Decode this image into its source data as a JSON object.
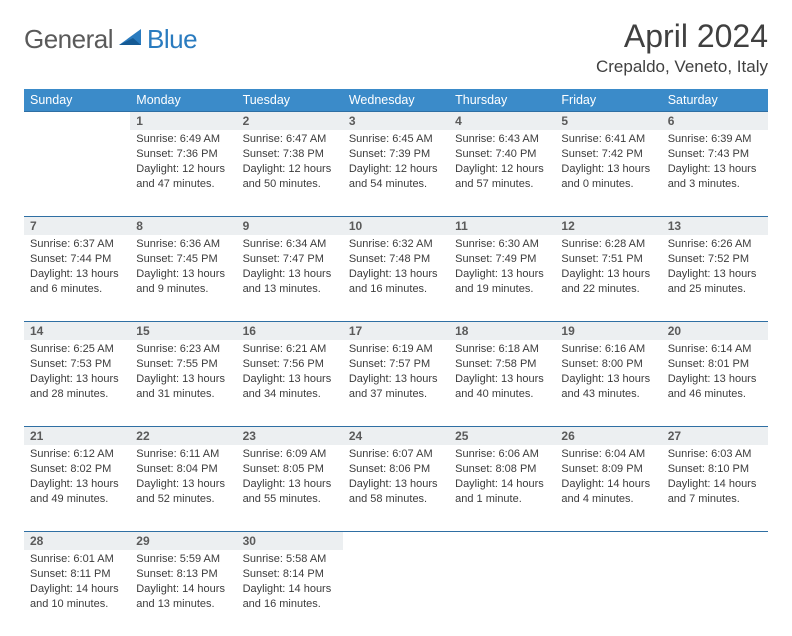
{
  "brand": {
    "part1": "General",
    "part2": "Blue"
  },
  "title": "April 2024",
  "subtitle": "Crepaldo, Veneto, Italy",
  "colors": {
    "header_bg": "#3b8bc9",
    "header_text": "#ffffff",
    "rule": "#2f6fa3",
    "daynum_bg": "#eceff1",
    "daynum_text": "#5a5a5a",
    "body_text": "#3c3c3c",
    "logo_gray": "#5a5a5a",
    "logo_blue": "#2a7bbf"
  },
  "weekdays": [
    "Sunday",
    "Monday",
    "Tuesday",
    "Wednesday",
    "Thursday",
    "Friday",
    "Saturday"
  ],
  "weeks": [
    [
      null,
      {
        "n": "1",
        "sr": "6:49 AM",
        "ss": "7:36 PM",
        "dl": "12 hours and 47 minutes."
      },
      {
        "n": "2",
        "sr": "6:47 AM",
        "ss": "7:38 PM",
        "dl": "12 hours and 50 minutes."
      },
      {
        "n": "3",
        "sr": "6:45 AM",
        "ss": "7:39 PM",
        "dl": "12 hours and 54 minutes."
      },
      {
        "n": "4",
        "sr": "6:43 AM",
        "ss": "7:40 PM",
        "dl": "12 hours and 57 minutes."
      },
      {
        "n": "5",
        "sr": "6:41 AM",
        "ss": "7:42 PM",
        "dl": "13 hours and 0 minutes."
      },
      {
        "n": "6",
        "sr": "6:39 AM",
        "ss": "7:43 PM",
        "dl": "13 hours and 3 minutes."
      }
    ],
    [
      {
        "n": "7",
        "sr": "6:37 AM",
        "ss": "7:44 PM",
        "dl": "13 hours and 6 minutes."
      },
      {
        "n": "8",
        "sr": "6:36 AM",
        "ss": "7:45 PM",
        "dl": "13 hours and 9 minutes."
      },
      {
        "n": "9",
        "sr": "6:34 AM",
        "ss": "7:47 PM",
        "dl": "13 hours and 13 minutes."
      },
      {
        "n": "10",
        "sr": "6:32 AM",
        "ss": "7:48 PM",
        "dl": "13 hours and 16 minutes."
      },
      {
        "n": "11",
        "sr": "6:30 AM",
        "ss": "7:49 PM",
        "dl": "13 hours and 19 minutes."
      },
      {
        "n": "12",
        "sr": "6:28 AM",
        "ss": "7:51 PM",
        "dl": "13 hours and 22 minutes."
      },
      {
        "n": "13",
        "sr": "6:26 AM",
        "ss": "7:52 PM",
        "dl": "13 hours and 25 minutes."
      }
    ],
    [
      {
        "n": "14",
        "sr": "6:25 AM",
        "ss": "7:53 PM",
        "dl": "13 hours and 28 minutes."
      },
      {
        "n": "15",
        "sr": "6:23 AM",
        "ss": "7:55 PM",
        "dl": "13 hours and 31 minutes."
      },
      {
        "n": "16",
        "sr": "6:21 AM",
        "ss": "7:56 PM",
        "dl": "13 hours and 34 minutes."
      },
      {
        "n": "17",
        "sr": "6:19 AM",
        "ss": "7:57 PM",
        "dl": "13 hours and 37 minutes."
      },
      {
        "n": "18",
        "sr": "6:18 AM",
        "ss": "7:58 PM",
        "dl": "13 hours and 40 minutes."
      },
      {
        "n": "19",
        "sr": "6:16 AM",
        "ss": "8:00 PM",
        "dl": "13 hours and 43 minutes."
      },
      {
        "n": "20",
        "sr": "6:14 AM",
        "ss": "8:01 PM",
        "dl": "13 hours and 46 minutes."
      }
    ],
    [
      {
        "n": "21",
        "sr": "6:12 AM",
        "ss": "8:02 PM",
        "dl": "13 hours and 49 minutes."
      },
      {
        "n": "22",
        "sr": "6:11 AM",
        "ss": "8:04 PM",
        "dl": "13 hours and 52 minutes."
      },
      {
        "n": "23",
        "sr": "6:09 AM",
        "ss": "8:05 PM",
        "dl": "13 hours and 55 minutes."
      },
      {
        "n": "24",
        "sr": "6:07 AM",
        "ss": "8:06 PM",
        "dl": "13 hours and 58 minutes."
      },
      {
        "n": "25",
        "sr": "6:06 AM",
        "ss": "8:08 PM",
        "dl": "14 hours and 1 minute."
      },
      {
        "n": "26",
        "sr": "6:04 AM",
        "ss": "8:09 PM",
        "dl": "14 hours and 4 minutes."
      },
      {
        "n": "27",
        "sr": "6:03 AM",
        "ss": "8:10 PM",
        "dl": "14 hours and 7 minutes."
      }
    ],
    [
      {
        "n": "28",
        "sr": "6:01 AM",
        "ss": "8:11 PM",
        "dl": "14 hours and 10 minutes."
      },
      {
        "n": "29",
        "sr": "5:59 AM",
        "ss": "8:13 PM",
        "dl": "14 hours and 13 minutes."
      },
      {
        "n": "30",
        "sr": "5:58 AM",
        "ss": "8:14 PM",
        "dl": "14 hours and 16 minutes."
      },
      null,
      null,
      null,
      null
    ]
  ],
  "labels": {
    "sunrise": "Sunrise: ",
    "sunset": "Sunset: ",
    "daylight": "Daylight: "
  }
}
